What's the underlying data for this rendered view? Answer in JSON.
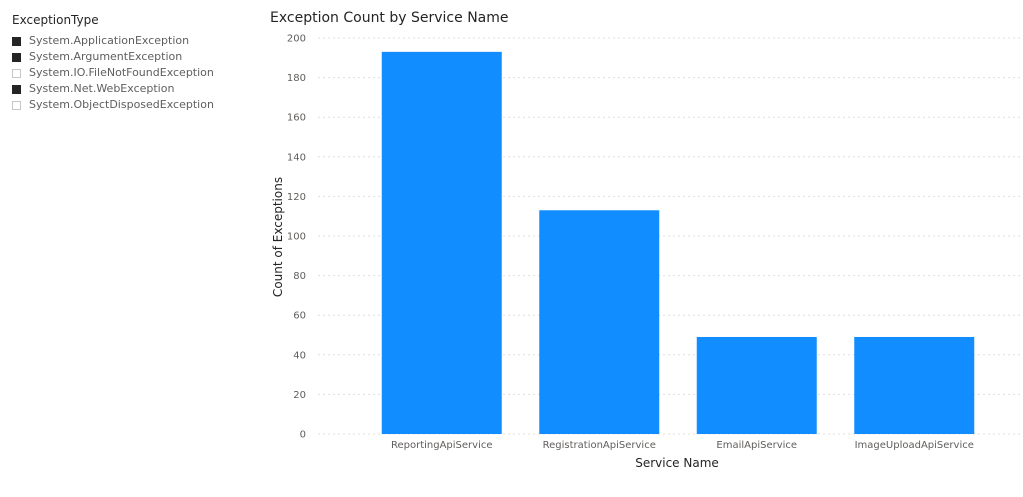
{
  "slicer": {
    "title": "ExceptionType",
    "items": [
      {
        "label": "System.ApplicationException",
        "checked": true
      },
      {
        "label": "System.ArgumentException",
        "checked": true
      },
      {
        "label": "System.IO.FileNotFoundException",
        "checked": false
      },
      {
        "label": "System.Net.WebException",
        "checked": true
      },
      {
        "label": "System.ObjectDisposedException",
        "checked": false
      }
    ]
  },
  "chart_data": {
    "type": "bar",
    "title": "Exception Count by Service Name",
    "xlabel": "Service Name",
    "ylabel": "Count of Exceptions",
    "categories": [
      "ReportingApiService",
      "RegistrationApiService",
      "EmailApiService",
      "ImageUploadApiService"
    ],
    "values": [
      193,
      113,
      49,
      49
    ],
    "ylim": [
      0,
      200
    ],
    "yticks": [
      0,
      20,
      40,
      60,
      80,
      100,
      120,
      140,
      160,
      180,
      200
    ],
    "grid": true,
    "bar_color": "#118DFF",
    "grid_color": "#E1DFDD"
  }
}
